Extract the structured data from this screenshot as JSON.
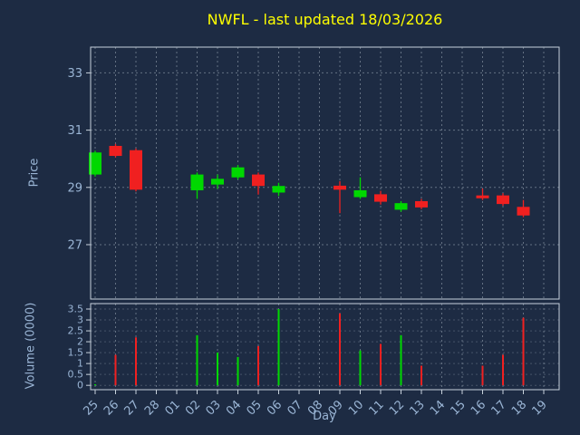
{
  "chart_data": {
    "type": "candlestick",
    "title": "NWFL - last updated 18/03/2026",
    "xlabel": "Day",
    "grid": true,
    "x_labels": [
      "25",
      "26",
      "27",
      "28",
      "01",
      "02",
      "03",
      "04",
      "05",
      "06",
      "07",
      "08",
      "09",
      "10",
      "11",
      "12",
      "13",
      "14",
      "15",
      "16",
      "17",
      "18",
      "19"
    ],
    "price_panel": {
      "ylabel": "Price",
      "ylim": [
        25.1,
        33.9
      ],
      "yticks": [
        27,
        29,
        31,
        33
      ]
    },
    "volume_panel": {
      "ylabel": "Volume (0000)",
      "ylim": [
        -0.2,
        3.75
      ],
      "yticks": [
        0,
        0.5,
        1,
        1.5,
        2,
        2.5,
        3,
        3.5
      ]
    },
    "candles": [
      {
        "day": "25",
        "open": 29.45,
        "high": 30.28,
        "low": 29.38,
        "close": 30.22,
        "volume": 0.05
      },
      {
        "day": "26",
        "open": 30.45,
        "high": 30.52,
        "low": 30.05,
        "close": 30.1,
        "volume": 1.4
      },
      {
        "day": "27",
        "open": 30.3,
        "high": 30.36,
        "low": 28.86,
        "close": 28.92,
        "volume": 2.2
      },
      {
        "day": "02",
        "open": 28.9,
        "high": 29.52,
        "low": 28.6,
        "close": 29.45,
        "volume": 2.3
      },
      {
        "day": "03",
        "open": 29.1,
        "high": 29.45,
        "low": 28.95,
        "close": 29.3,
        "volume": 1.5
      },
      {
        "day": "04",
        "open": 29.35,
        "high": 29.78,
        "low": 29.28,
        "close": 29.7,
        "volume": 1.3
      },
      {
        "day": "05",
        "open": 29.45,
        "high": 29.52,
        "low": 28.75,
        "close": 29.05,
        "volume": 1.8
      },
      {
        "day": "06",
        "open": 28.82,
        "high": 29.16,
        "low": 28.7,
        "close": 29.05,
        "volume": 3.5
      },
      {
        "day": "09",
        "open": 29.06,
        "high": 29.22,
        "low": 28.1,
        "close": 28.92,
        "volume": 3.3
      },
      {
        "day": "10",
        "open": 28.66,
        "high": 29.35,
        "low": 28.6,
        "close": 28.9,
        "volume": 1.6
      },
      {
        "day": "11",
        "open": 28.76,
        "high": 28.88,
        "low": 28.4,
        "close": 28.5,
        "volume": 1.9
      },
      {
        "day": "12",
        "open": 28.22,
        "high": 28.52,
        "low": 28.15,
        "close": 28.45,
        "volume": 2.3
      },
      {
        "day": "13",
        "open": 28.52,
        "high": 28.6,
        "low": 28.24,
        "close": 28.3,
        "volume": 0.9
      },
      {
        "day": "16",
        "open": 28.72,
        "high": 28.96,
        "low": 28.56,
        "close": 28.62,
        "volume": 0.9
      },
      {
        "day": "17",
        "open": 28.72,
        "high": 28.8,
        "low": 28.36,
        "close": 28.42,
        "volume": 1.4
      },
      {
        "day": "18",
        "open": 28.32,
        "high": 28.56,
        "low": 27.96,
        "close": 28.02,
        "volume": 3.1
      }
    ]
  },
  "colors": {
    "background": "#1d2b43",
    "title": "#ffff00",
    "axis_text": "#9ab5d5",
    "spine": "#c8d2dc",
    "grid": "#d8e2ec",
    "up": "#00d800",
    "down": "#f02020"
  }
}
